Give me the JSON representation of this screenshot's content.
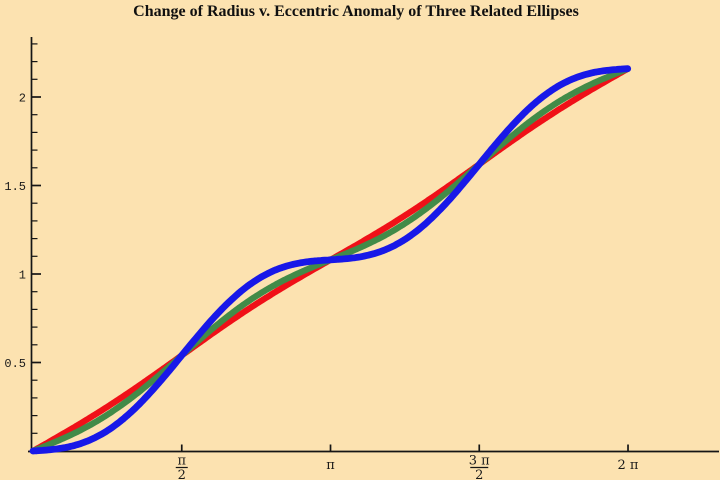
{
  "chart_data": {
    "type": "line",
    "title": "Change of Radius v. Eccentric Anomaly of Three Related Ellipses",
    "xlabel": "",
    "ylabel": "",
    "xlim": [
      0,
      7.25
    ],
    "ylim": [
      0,
      2.35
    ],
    "grid": false,
    "legend": "none",
    "background_color": "#fce2b0",
    "axis_color": "#151515",
    "x_ticks": [
      {
        "value": 1.5708,
        "label": "π/2",
        "display": "fraction",
        "numerator": "π",
        "denominator": "2"
      },
      {
        "value": 3.1416,
        "label": "π",
        "display": "inline",
        "text": "π"
      },
      {
        "value": 4.7124,
        "label": "3π/2",
        "display": "fraction",
        "numerator": "3 π",
        "denominator": "2"
      },
      {
        "value": 6.2832,
        "label": "2π",
        "display": "inline",
        "text": "2 π"
      }
    ],
    "y_ticks_major": [
      {
        "value": 0.5,
        "label": "0.5"
      },
      {
        "value": 1.0,
        "label": "1"
      },
      {
        "value": 1.5,
        "label": "1.5"
      },
      {
        "value": 2.0,
        "label": "2"
      }
    ],
    "y_minor_tick_step": 0.1,
    "y_minor_tick_max": 2.3,
    "model": {
      "description": "r(E) = c*E - A*sin(2E), E from 0 to 2pi",
      "slope_c": 0.3438,
      "r_at_2pi": 2.16
    },
    "x_values_E": [
      0,
      0.393,
      0.785,
      1.178,
      1.571,
      1.963,
      2.356,
      2.749,
      3.142,
      3.534,
      3.927,
      4.32,
      4.712,
      5.105,
      5.498,
      5.89,
      6.283
    ],
    "series": [
      {
        "name": "red-line-ellipse",
        "color": "#f01018",
        "line_width": 6.2,
        "amplitude": 0.02,
        "values": [
          0,
          0.121,
          0.25,
          0.391,
          0.54,
          0.689,
          0.83,
          0.959,
          1.08,
          1.201,
          1.33,
          1.471,
          1.62,
          1.769,
          1.91,
          2.039,
          2.16
        ]
      },
      {
        "name": "green-curve-ellipse",
        "color": "#428b48",
        "line_width": 6.2,
        "amplitude": 0.065,
        "values": [
          0,
          0.089,
          0.205,
          0.359,
          0.54,
          0.721,
          0.875,
          0.991,
          1.08,
          1.169,
          1.285,
          1.439,
          1.62,
          1.801,
          1.955,
          2.071,
          2.16
        ]
      },
      {
        "name": "blue-curve-ellipse",
        "color": "#1818e8",
        "line_width": 6.8,
        "amplitude": 0.155,
        "values": [
          0,
          0.025,
          0.115,
          0.295,
          0.54,
          0.785,
          0.965,
          1.055,
          1.08,
          1.105,
          1.195,
          1.375,
          1.62,
          1.865,
          2.045,
          2.135,
          2.16
        ]
      }
    ]
  }
}
